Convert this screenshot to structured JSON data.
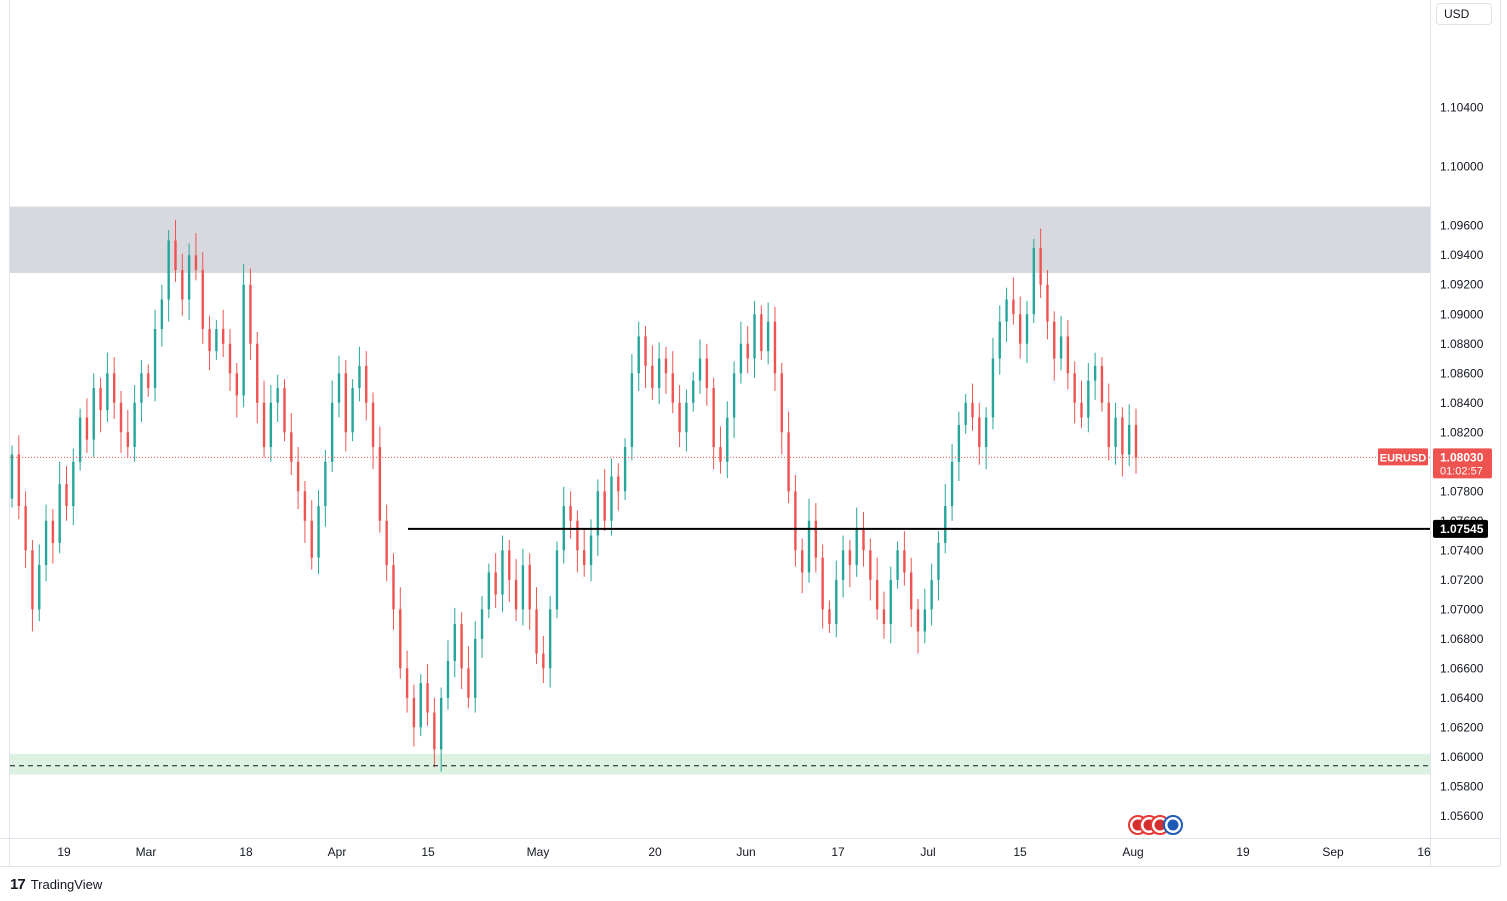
{
  "header": {
    "currency_label": "USD"
  },
  "footer": {
    "brand_logo": "17",
    "brand_name": "TradingView"
  },
  "chart_data": {
    "type": "candlestick",
    "symbol": "EURUSD",
    "current_price": "1.08030",
    "countdown": "01:02:57",
    "price_line_label": "1.07545",
    "price_line_value": 1.07545,
    "ylim": [
      1.0545,
      1.1113
    ],
    "y_ticks": [
      "1.10400",
      "1.10000",
      "1.09600",
      "1.09400",
      "1.09200",
      "1.09000",
      "1.08800",
      "1.08600",
      "1.08400",
      "1.08200",
      "1.07800",
      "1.07600",
      "1.07400",
      "1.07200",
      "1.07000",
      "1.06800",
      "1.06600",
      "1.06400",
      "1.06200",
      "1.06000",
      "1.05800",
      "1.05600"
    ],
    "x_ticks": [
      "19",
      "Mar",
      "18",
      "Apr",
      "15",
      "May",
      "20",
      "Jun",
      "17",
      "Jul",
      "15",
      "Aug",
      "19",
      "Sep",
      "16"
    ],
    "zones": [
      {
        "name": "resistance",
        "from": 1.0928,
        "to": 1.0973,
        "color": "#d8d9de"
      },
      {
        "name": "support",
        "from": 1.0588,
        "to": 1.0602,
        "color": "#dcf1e0"
      }
    ],
    "support_dashed_level": 1.0594,
    "series": [
      {
        "name": "EURUSD",
        "points": [
          [
            1.0775,
            1.0805
          ],
          [
            1.0805,
            1.077
          ],
          [
            1.077,
            1.074
          ],
          [
            1.074,
            1.07
          ],
          [
            1.07,
            1.073
          ],
          [
            1.073,
            1.076
          ],
          [
            1.076,
            1.0745
          ],
          [
            1.0745,
            1.0785
          ],
          [
            1.0785,
            1.077
          ],
          [
            1.077,
            1.08
          ],
          [
            1.08,
            1.083
          ],
          [
            1.083,
            1.0815
          ],
          [
            1.0815,
            1.085
          ],
          [
            1.085,
            1.0835
          ],
          [
            1.0835,
            1.086
          ],
          [
            1.086,
            1.084
          ],
          [
            1.084,
            1.082
          ],
          [
            1.082,
            1.081
          ],
          [
            1.081,
            1.084
          ],
          [
            1.084,
            1.086
          ],
          [
            1.086,
            1.085
          ],
          [
            1.085,
            1.089
          ],
          [
            1.089,
            1.091
          ],
          [
            1.091,
            1.095
          ],
          [
            1.095,
            1.093
          ],
          [
            1.093,
            1.091
          ],
          [
            1.091,
            1.094
          ],
          [
            1.094,
            1.093
          ],
          [
            1.093,
            1.089
          ],
          [
            1.089,
            1.0875
          ],
          [
            1.0875,
            1.089
          ],
          [
            1.089,
            1.088
          ],
          [
            1.088,
            1.086
          ],
          [
            1.086,
            1.0845
          ],
          [
            1.0845,
            1.092
          ],
          [
            1.092,
            1.088
          ],
          [
            1.088,
            1.084
          ],
          [
            1.084,
            1.081
          ],
          [
            1.081,
            1.084
          ],
          [
            1.084,
            1.085
          ],
          [
            1.085,
            1.082
          ],
          [
            1.082,
            1.08
          ],
          [
            1.08,
            1.078
          ],
          [
            1.078,
            1.076
          ],
          [
            1.076,
            1.0735
          ],
          [
            1.0735,
            1.077
          ],
          [
            1.077,
            1.08
          ],
          [
            1.08,
            1.084
          ],
          [
            1.084,
            1.086
          ],
          [
            1.086,
            1.082
          ],
          [
            1.082,
            1.085
          ],
          [
            1.085,
            1.0865
          ],
          [
            1.0865,
            1.084
          ],
          [
            1.084,
            1.081
          ],
          [
            1.081,
            1.076
          ],
          [
            1.076,
            1.073
          ],
          [
            1.073,
            1.07
          ],
          [
            1.07,
            1.066
          ],
          [
            1.066,
            1.064
          ],
          [
            1.064,
            1.062
          ],
          [
            1.062,
            1.065
          ],
          [
            1.065,
            1.063
          ],
          [
            1.063,
            1.0605
          ],
          [
            1.0605,
            1.064
          ],
          [
            1.064,
            1.0665
          ],
          [
            1.0665,
            1.069
          ],
          [
            1.069,
            1.066
          ],
          [
            1.066,
            1.064
          ],
          [
            1.064,
            1.068
          ],
          [
            1.068,
            1.07
          ],
          [
            1.07,
            1.0725
          ],
          [
            1.0725,
            1.071
          ],
          [
            1.071,
            1.074
          ],
          [
            1.074,
            1.072
          ],
          [
            1.072,
            1.07
          ],
          [
            1.07,
            1.073
          ],
          [
            1.073,
            1.07
          ],
          [
            1.07,
            1.067
          ],
          [
            1.067,
            1.066
          ],
          [
            1.066,
            1.07
          ],
          [
            1.07,
            1.074
          ],
          [
            1.074,
            1.077
          ],
          [
            1.077,
            1.076
          ],
          [
            1.076,
            1.074
          ],
          [
            1.074,
            1.073
          ],
          [
            1.073,
            1.075
          ],
          [
            1.075,
            1.078
          ],
          [
            1.078,
            1.076
          ],
          [
            1.076,
            1.079
          ],
          [
            1.079,
            1.078
          ],
          [
            1.078,
            1.081
          ],
          [
            1.081,
            1.086
          ],
          [
            1.086,
            1.0885
          ],
          [
            1.0885,
            1.0865
          ],
          [
            1.0865,
            1.085
          ],
          [
            1.085,
            1.087
          ],
          [
            1.087,
            1.086
          ],
          [
            1.086,
            1.084
          ],
          [
            1.084,
            1.082
          ],
          [
            1.082,
            1.084
          ],
          [
            1.084,
            1.0855
          ],
          [
            1.0855,
            1.087
          ],
          [
            1.087,
            1.085
          ],
          [
            1.085,
            1.081
          ],
          [
            1.081,
            1.08
          ],
          [
            1.08,
            1.083
          ],
          [
            1.083,
            1.086
          ],
          [
            1.086,
            1.088
          ],
          [
            1.088,
            1.087
          ],
          [
            1.087,
            1.09
          ],
          [
            1.09,
            1.0875
          ],
          [
            1.0875,
            1.0895
          ],
          [
            1.0895,
            1.086
          ],
          [
            1.086,
            1.082
          ],
          [
            1.082,
            1.078
          ],
          [
            1.078,
            1.074
          ],
          [
            1.074,
            1.0725
          ],
          [
            1.0725,
            1.076
          ],
          [
            1.076,
            1.0735
          ],
          [
            1.0735,
            1.07
          ],
          [
            1.07,
            1.069
          ],
          [
            1.069,
            1.072
          ],
          [
            1.072,
            1.074
          ],
          [
            1.074,
            1.073
          ],
          [
            1.073,
            1.0755
          ],
          [
            1.0755,
            1.074
          ],
          [
            1.074,
            1.072
          ],
          [
            1.072,
            1.07
          ],
          [
            1.07,
            1.069
          ],
          [
            1.069,
            1.072
          ],
          [
            1.072,
            1.074
          ],
          [
            1.074,
            1.0725
          ],
          [
            1.0725,
            1.07
          ],
          [
            1.07,
            1.0685
          ],
          [
            1.0685,
            1.07
          ],
          [
            1.07,
            1.072
          ],
          [
            1.072,
            1.0745
          ],
          [
            1.0745,
            1.077
          ],
          [
            1.077,
            1.08
          ],
          [
            1.08,
            1.0825
          ],
          [
            1.0825,
            1.084
          ],
          [
            1.084,
            1.083
          ],
          [
            1.083,
            1.081
          ],
          [
            1.081,
            1.083
          ],
          [
            1.083,
            1.087
          ],
          [
            1.087,
            1.0895
          ],
          [
            1.0895,
            1.091
          ],
          [
            1.091,
            1.09
          ],
          [
            1.09,
            1.088
          ],
          [
            1.088,
            1.09
          ],
          [
            1.09,
            1.0945
          ],
          [
            1.0945,
            1.092
          ],
          [
            1.092,
            1.0895
          ],
          [
            1.0895,
            1.087
          ],
          [
            1.087,
            1.0885
          ],
          [
            1.0885,
            1.086
          ],
          [
            1.086,
            1.084
          ],
          [
            1.084,
            1.083
          ],
          [
            1.083,
            1.0855
          ],
          [
            1.0855,
            1.0865
          ],
          [
            1.0865,
            1.084
          ],
          [
            1.084,
            1.081
          ],
          [
            1.081,
            1.083
          ],
          [
            1.083,
            1.0805
          ],
          [
            1.0805,
            1.0825
          ],
          [
            1.0825,
            1.0803
          ]
        ]
      }
    ]
  }
}
